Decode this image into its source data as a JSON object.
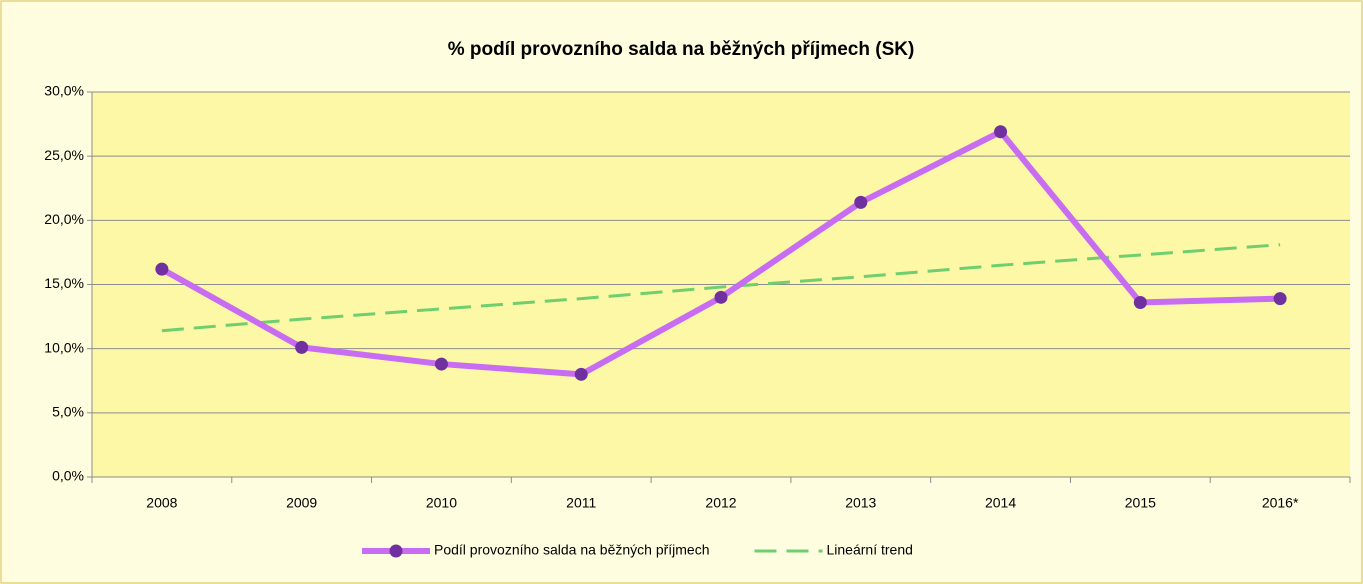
{
  "chart_data": {
    "type": "line",
    "title": "% podíl provozního salda na běžných příjmech (SK)",
    "categories": [
      "2008",
      "2009",
      "2010",
      "2011",
      "2012",
      "2013",
      "2014",
      "2015",
      "2016*"
    ],
    "series": [
      {
        "name": "Podíl provozního salda na běžných příjmech",
        "color": "#c86cf2",
        "marker": "circle",
        "marker_color": "#7030a0",
        "line_style": "solid",
        "values": [
          16.2,
          10.1,
          8.8,
          8.0,
          14.0,
          21.4,
          26.9,
          13.6,
          13.9
        ]
      },
      {
        "name": "Lineární trend",
        "color": "#6fcf6f",
        "line_style": "dashed",
        "values": [
          11.4,
          12.3,
          13.1,
          13.9,
          14.8,
          15.6,
          16.5,
          17.3,
          18.1
        ]
      }
    ],
    "ylim": [
      0,
      30
    ],
    "yticks": [
      {
        "value": 0,
        "label": "0,0%"
      },
      {
        "value": 5,
        "label": "5,0%"
      },
      {
        "value": 10,
        "label": "10,0%"
      },
      {
        "value": 15,
        "label": "15,0%"
      },
      {
        "value": 20,
        "label": "20,0%"
      },
      {
        "value": 25,
        "label": "25,0%"
      },
      {
        "value": 30,
        "label": "30,0%"
      }
    ],
    "grid": true,
    "legend": "bottom"
  }
}
